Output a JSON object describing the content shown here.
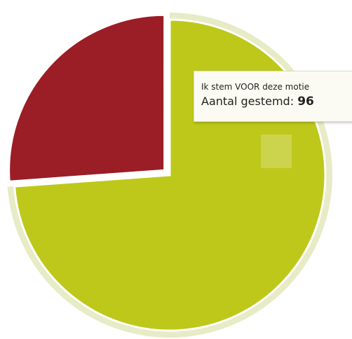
{
  "chart_data": {
    "type": "pie",
    "slices": [
      {
        "label": "Ik stem VOOR deze motie",
        "value": 96,
        "color": "#bdc81a",
        "sliced": false
      },
      {
        "label": "",
        "value": 34,
        "color": "#9b1d25",
        "sliced": true
      }
    ]
  },
  "tooltip": {
    "series_name": "Ik stem VOOR deze motie",
    "value_label": "Aantal gestemd:",
    "value": "96"
  },
  "colors": {
    "voor": "#bdc81a",
    "tegen": "#9b1d25",
    "hover_halo": "#e7ebc6",
    "background": "#ffffff"
  }
}
